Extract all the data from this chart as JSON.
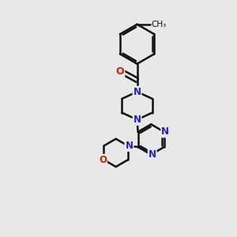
{
  "background_color": "#e8e8e8",
  "atom_color_N": "#2222cc",
  "atom_color_O": "#cc2200",
  "atom_color_C": "#111111",
  "bond_color": "#111111",
  "bond_width": 1.8,
  "font_size_atom": 8.5,
  "figsize": [
    3.0,
    3.0
  ],
  "dpi": 100,
  "xlim": [
    0,
    10
  ],
  "ylim": [
    0,
    10
  ]
}
